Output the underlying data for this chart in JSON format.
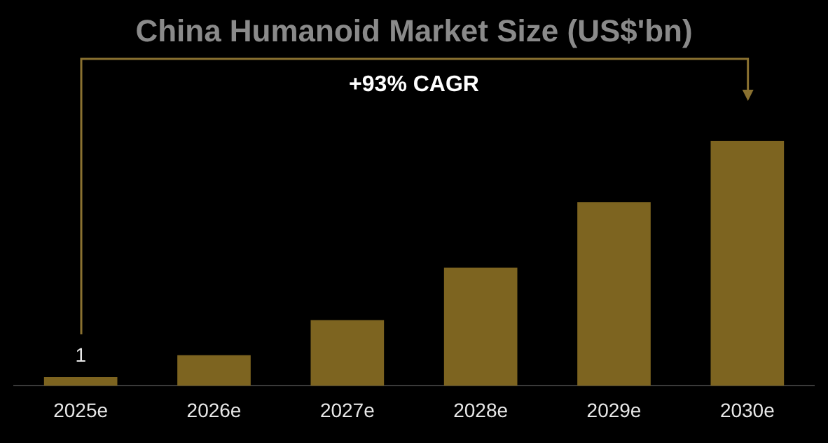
{
  "chart_data": {
    "type": "bar",
    "title": "China Humanoid Market Size (US$'bn)",
    "annotations": [
      "+93% CAGR"
    ],
    "categories": [
      "2025e",
      "2026e",
      "2027e",
      "2028e",
      "2029e",
      "2030e"
    ],
    "values": [
      1,
      3.5,
      7.5,
      13.5,
      21,
      28
    ],
    "value_labels": [
      "1",
      null,
      null,
      null,
      null,
      null
    ],
    "color": "#7d6420",
    "ylim": [
      0,
      28
    ],
    "tick_labels": "x",
    "legend": false
  }
}
